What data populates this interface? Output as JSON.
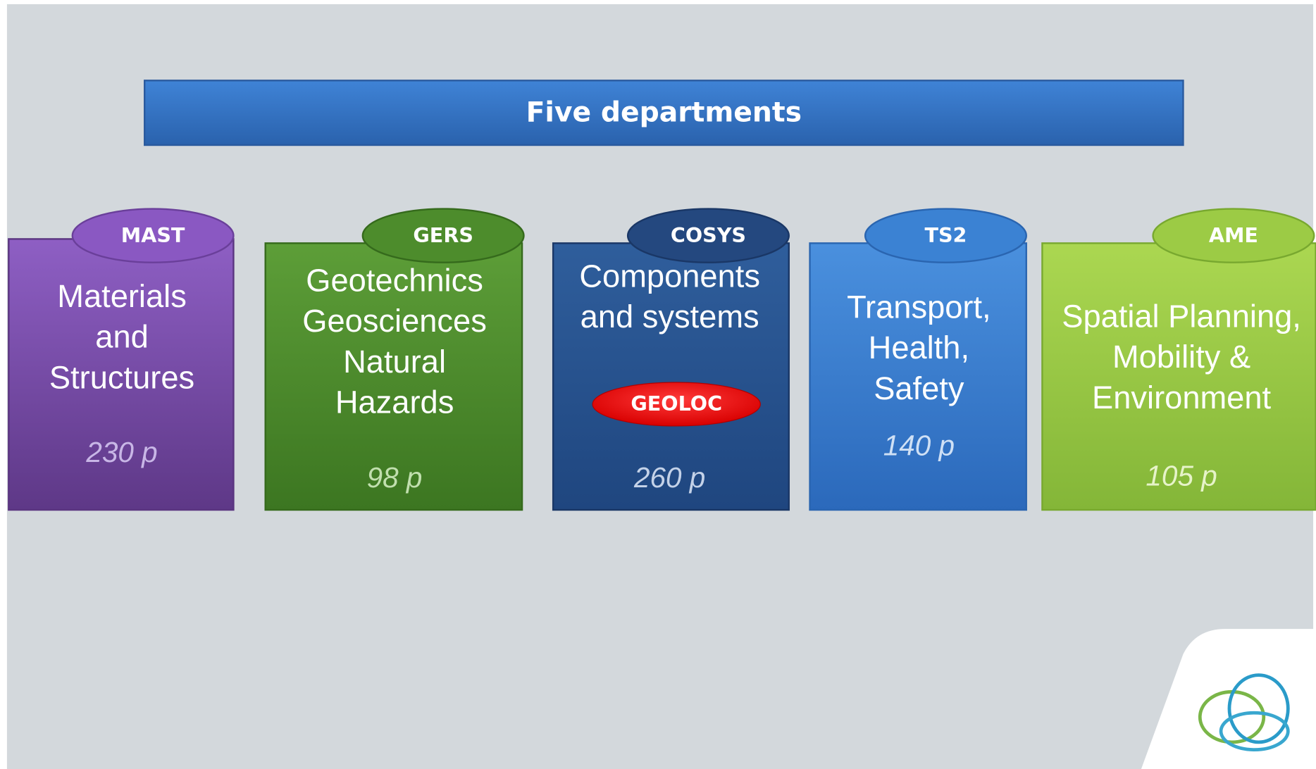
{
  "title": "Five departments",
  "departments": [
    {
      "acronym": "MAST",
      "name_lines": [
        "Materials",
        "and",
        "Structures"
      ],
      "staff": "230 p"
    },
    {
      "acronym": "GERS",
      "name_lines": [
        "Geotechnics",
        "Geosciences",
        "Natural",
        "Hazards"
      ],
      "staff": "98 p"
    },
    {
      "acronym": "COSYS",
      "name_lines": [
        "Components",
        "and systems"
      ],
      "badge": "GEOLOC",
      "staff": "260 p"
    },
    {
      "acronym": "TS2",
      "name_lines": [
        "Transport,",
        "Health,",
        "Safety"
      ],
      "staff": "140 p"
    },
    {
      "acronym": "AME",
      "name_lines": [
        "Spatial Planning,",
        "Mobility &",
        "Environment"
      ],
      "staff": "105 p"
    }
  ]
}
